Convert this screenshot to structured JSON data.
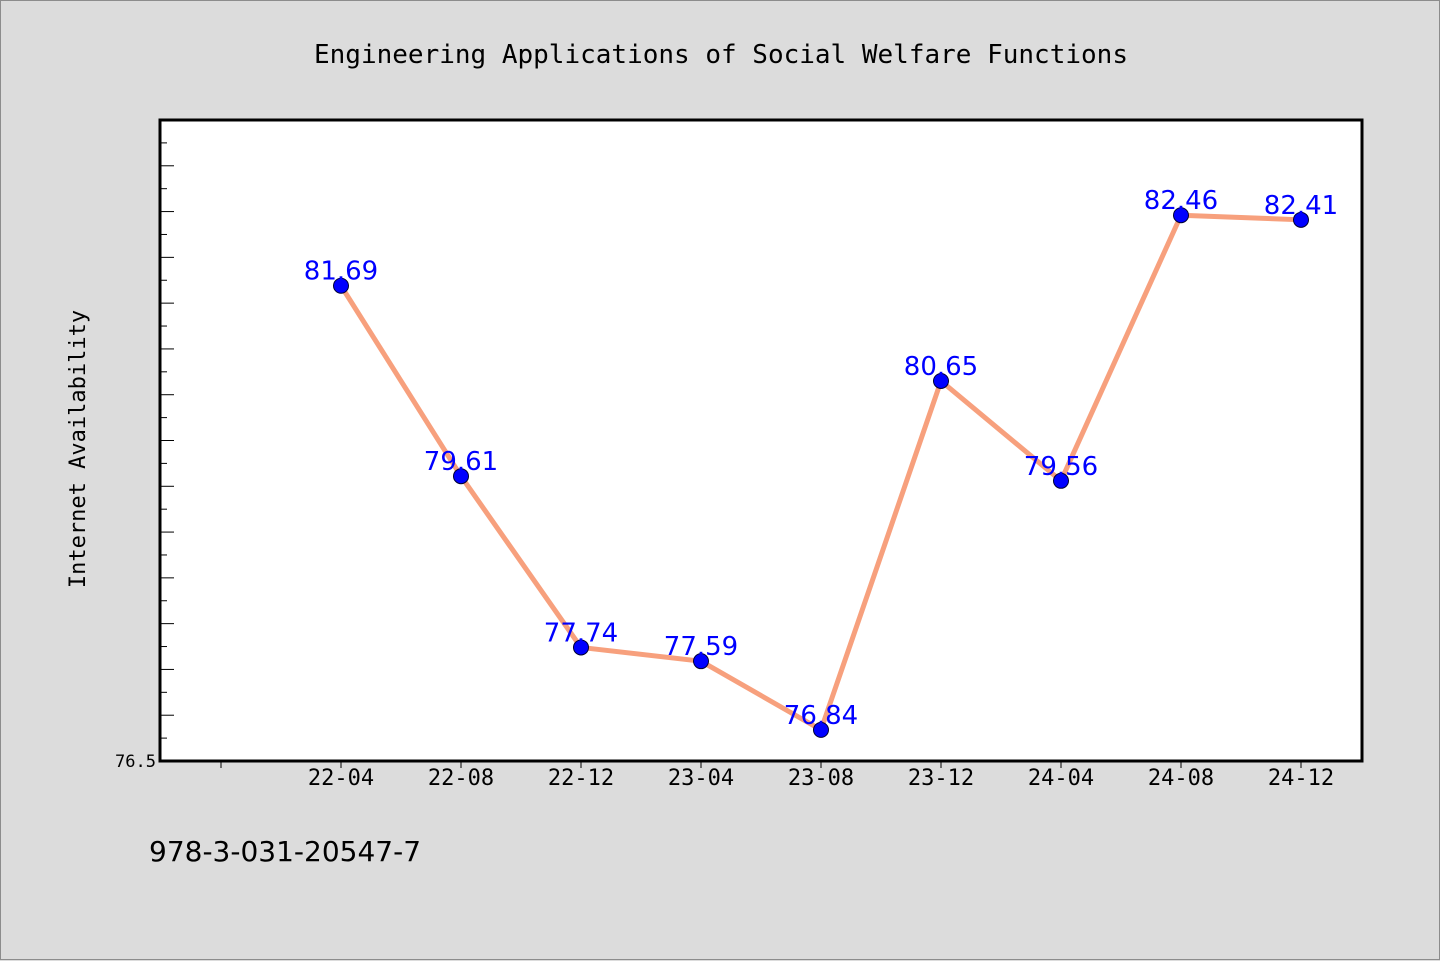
{
  "chart_data": {
    "type": "line",
    "title": "Engineering Applications of Social Welfare Functions",
    "xlabel": "",
    "ylabel": "Internet Availability",
    "categories": [
      "22-04",
      "22-08",
      "22-12",
      "23-04",
      "23-08",
      "23-12",
      "24-04",
      "24-08",
      "24-12"
    ],
    "series": [
      {
        "values": [
          81.69,
          79.61,
          77.74,
          77.59,
          76.84,
          80.65,
          79.56,
          82.46,
          82.41
        ],
        "labels": [
          "81.69",
          "79.61",
          "77.74",
          "77.59",
          "76.84",
          "80.65",
          "79.56",
          "82.46",
          "82.41"
        ],
        "line_color": "#f7a07d",
        "marker_color": "#0000ff"
      }
    ],
    "ylim": [
      76.5,
      83.5
    ],
    "y_tick_labels": [
      "76.5"
    ],
    "grid": false,
    "legend": "none"
  },
  "footer": {
    "isbn": "978-3-031-20547-7"
  }
}
